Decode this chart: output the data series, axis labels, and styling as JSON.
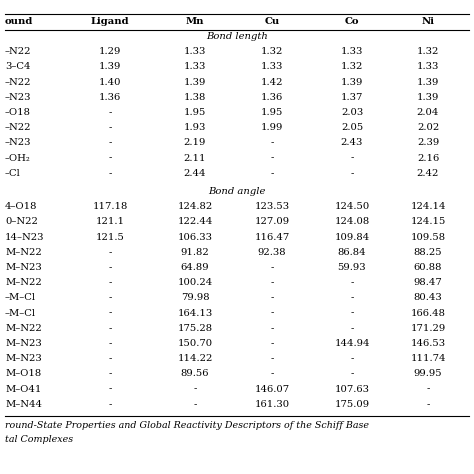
{
  "headers": [
    "ound",
    "Ligand",
    "Mn",
    "Cu",
    "Co",
    "Ni"
  ],
  "section1_label": "Bond length",
  "section2_label": "Bond angle",
  "bond_length_rows": [
    [
      "–N22",
      "1.29",
      "1.33",
      "1.32",
      "1.33",
      "1.32"
    ],
    [
      "3–C4",
      "1.39",
      "1.33",
      "1.33",
      "1.32",
      "1.33"
    ],
    [
      "–N22",
      "1.40",
      "1.39",
      "1.42",
      "1.39",
      "1.39"
    ],
    [
      "–N23",
      "1.36",
      "1.38",
      "1.36",
      "1.37",
      "1.39"
    ],
    [
      "–O18",
      "-",
      "1.95",
      "1.95",
      "2.03",
      "2.04"
    ],
    [
      "–N22",
      "-",
      "1.93",
      "1.99",
      "2.05",
      "2.02"
    ],
    [
      "–N23",
      "-",
      "2.19",
      "-",
      "2.43",
      "2.39"
    ],
    [
      "–OH₂",
      "-",
      "2.11",
      "-",
      "-",
      "2.16"
    ],
    [
      "–Cl",
      "-",
      "2.44",
      "-",
      "-",
      "2.42"
    ]
  ],
  "bond_angle_rows": [
    [
      "4–O18",
      "117.18",
      "124.82",
      "123.53",
      "124.50",
      "124.14"
    ],
    [
      "0–N22",
      "121.1",
      "122.44",
      "127.09",
      "124.08",
      "124.15"
    ],
    [
      "14–N23",
      "121.5",
      "106.33",
      "116.47",
      "109.84",
      "109.58"
    ],
    [
      "M–N22",
      "-",
      "91.82",
      "92.38",
      "86.84",
      "88.25"
    ],
    [
      "M–N23",
      "-",
      "64.89",
      "-",
      "59.93",
      "60.88"
    ],
    [
      "M–N22",
      "-",
      "100.24",
      "-",
      "-",
      "98.47"
    ],
    [
      "–M–Cl",
      "-",
      "79.98",
      "-",
      "-",
      "80.43"
    ],
    [
      "–M–Cl",
      "-",
      "164.13",
      "-",
      "-",
      "166.48"
    ],
    [
      "M–N22",
      "-",
      "175.28",
      "-",
      "-",
      "171.29"
    ],
    [
      "M–N23",
      "-",
      "150.70",
      "-",
      "144.94",
      "146.53"
    ],
    [
      "M–N23",
      "-",
      "114.22",
      "-",
      "-",
      "111.74"
    ],
    [
      "M–O18",
      "-",
      "89.56",
      "-",
      "-",
      "99.95"
    ],
    [
      "M–O41",
      "-",
      "-",
      "146.07",
      "107.63",
      "-"
    ],
    [
      "M–N44",
      "-",
      "-",
      "161.30",
      "175.09",
      "-"
    ]
  ],
  "footer_lines": [
    "round-State Properties and Global Reactivity Descriptors of the Schiff Base",
    "tal Complexes"
  ],
  "bg_color": "#ffffff",
  "text_color": "#000000",
  "font_size": 7.2,
  "footer_font_size": 6.8
}
